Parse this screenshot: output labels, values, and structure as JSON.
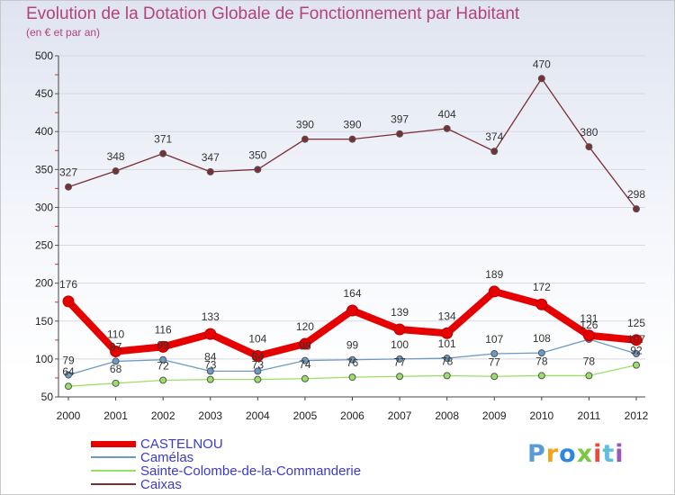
{
  "chart_data": {
    "type": "line",
    "title": "Evolution de la Dotation Globale de Fonctionnement par Habitant",
    "subtitle": "(en € et par an)",
    "x": [
      "2000",
      "2001",
      "2002",
      "2003",
      "2004",
      "2005",
      "2006",
      "2007",
      "2008",
      "2009",
      "2010",
      "2011",
      "2012"
    ],
    "ylim": [
      50,
      500
    ],
    "yticks": [
      "50",
      "100",
      "150",
      "200",
      "250",
      "300",
      "350",
      "400",
      "450",
      "500"
    ],
    "grid": true,
    "legend_position": "bottom-left",
    "series": [
      {
        "name": "CASTELNOU",
        "color": "#e60000",
        "values": [
          176,
          110,
          116,
          133,
          104,
          120,
          164,
          139,
          134,
          189,
          172,
          131,
          125
        ],
        "labels": [
          "176",
          "110",
          "116",
          "133",
          "104",
          "120",
          "164",
          "139",
          "134",
          "189",
          "172",
          "131",
          "125"
        ]
      },
      {
        "name": "Camélas",
        "color": "#6c9ac6",
        "values": [
          79,
          97,
          99,
          84,
          84,
          98,
          99,
          100,
          101,
          107,
          108,
          126,
          107
        ],
        "labels": [
          "79",
          "97",
          "99",
          "84",
          "84",
          "98",
          "99",
          "100",
          "101",
          "107",
          "108",
          "126",
          "107"
        ]
      },
      {
        "name": "Sainte-Colombe-de-la-Commanderie",
        "color": "#99e066",
        "values": [
          64,
          68,
          72,
          73,
          73,
          74,
          76,
          77,
          78,
          77,
          78,
          78,
          92
        ],
        "labels": [
          "64",
          "68",
          "72",
          "73",
          "73",
          "74",
          "76",
          "77",
          "78",
          "77",
          "78",
          "78",
          "92"
        ]
      },
      {
        "name": "Caixas",
        "color": "#7a2f35",
        "values": [
          327,
          348,
          371,
          347,
          350,
          390,
          390,
          397,
          404,
          374,
          470,
          380,
          298
        ],
        "labels": [
          "327",
          "348",
          "371",
          "347",
          "350",
          "390",
          "390",
          "397",
          "404",
          "374",
          "470",
          "380",
          "298"
        ]
      }
    ]
  },
  "brand": {
    "letters": [
      "P",
      "r",
      "o",
      "x",
      "i",
      "t",
      "i"
    ],
    "colors": [
      "#5b9bd5",
      "#f5a21b",
      "#2e86de",
      "#7ac943",
      "#e74c3c",
      "#5bc0de",
      "#9b59b6"
    ]
  }
}
